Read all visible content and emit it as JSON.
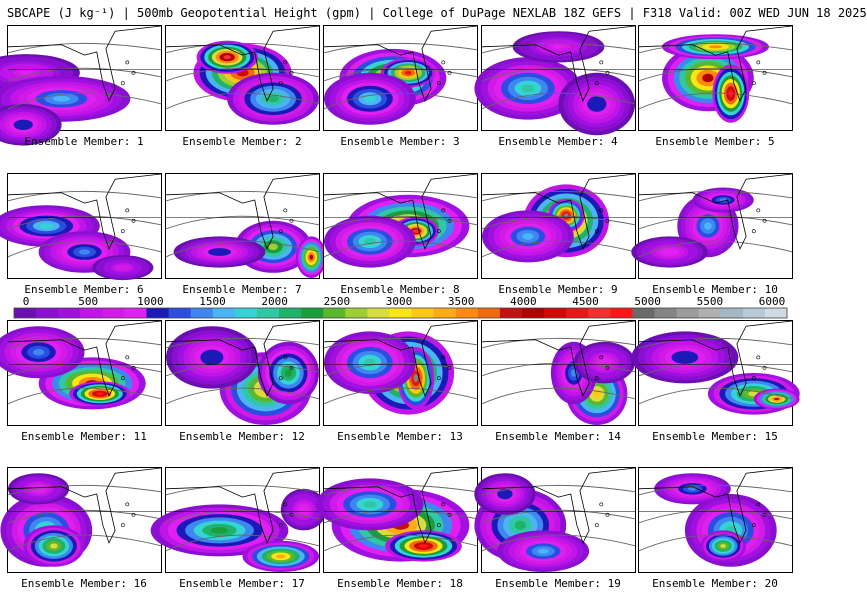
{
  "title": "SBCAPE (J kg⁻¹) | 500mb Geopotential Height (gpm) | College of DuPage NEXLAB 18Z GEFS | F318 Valid: 00Z WED JUN 18 2025",
  "colorbar": {
    "ticks": [
      "0",
      "500",
      "1000",
      "1500",
      "2000",
      "2500",
      "3000",
      "3500",
      "4000",
      "4500",
      "5000",
      "5500",
      "6000"
    ],
    "colors": [
      "#6b0fb3",
      "#8a0fd1",
      "#a010e0",
      "#c014e8",
      "#d21ae6",
      "#e020f0",
      "#1b1ab8",
      "#2b4de0",
      "#3e86f0",
      "#4ab4f5",
      "#35d3d5",
      "#30c7a4",
      "#1fb36a",
      "#1a9e3c",
      "#5ab82e",
      "#9bcf34",
      "#d9dc3a",
      "#fbe615",
      "#ffc816",
      "#ffab14",
      "#ff8a12",
      "#f06a10",
      "#c41010",
      "#b00000",
      "#d00808",
      "#e51717",
      "#f53030",
      "#ff1515",
      "#6a6a6a",
      "#858585",
      "#9c9c9c",
      "#b0b0b0",
      "#a3b8c7",
      "#b8cad7",
      "#cfdbe6"
    ]
  },
  "members": [
    {
      "label": "Ensemble Member: 1",
      "cape": [
        [
          0.12,
          0.45,
          0.9,
          0.35,
          0.18
        ],
        [
          0.35,
          0.7,
          1.6,
          0.45,
          0.22
        ],
        [
          0.1,
          0.95,
          1.2,
          0.25,
          0.2
        ]
      ]
    },
    {
      "label": "Ensemble Member: 2",
      "cape": [
        [
          0.5,
          0.45,
          4.2,
          0.32,
          0.28
        ],
        [
          0.4,
          0.3,
          4.6,
          0.2,
          0.16
        ],
        [
          0.7,
          0.7,
          2.2,
          0.3,
          0.25
        ]
      ]
    },
    {
      "label": "Ensemble Member: 3",
      "cape": [
        [
          0.45,
          0.5,
          3.6,
          0.35,
          0.28
        ],
        [
          0.55,
          0.45,
          4.3,
          0.18,
          0.14
        ],
        [
          0.3,
          0.7,
          1.8,
          0.3,
          0.25
        ]
      ]
    },
    {
      "label": "Ensemble Member: 4",
      "cape": [
        [
          0.3,
          0.6,
          2.0,
          0.35,
          0.3
        ],
        [
          0.75,
          0.75,
          1.2,
          0.25,
          0.3
        ],
        [
          0.5,
          0.2,
          0.9,
          0.3,
          0.15
        ]
      ]
    },
    {
      "label": "Ensemble Member: 5",
      "cape": [
        [
          0.45,
          0.5,
          4.0,
          0.3,
          0.32
        ],
        [
          0.6,
          0.65,
          4.8,
          0.12,
          0.28
        ],
        [
          0.5,
          0.2,
          3.5,
          0.35,
          0.12
        ]
      ]
    },
    {
      "label": "Ensemble Member: 6",
      "cape": [
        [
          0.25,
          0.5,
          1.8,
          0.35,
          0.2
        ],
        [
          0.5,
          0.75,
          1.4,
          0.3,
          0.2
        ],
        [
          0.75,
          0.9,
          0.8,
          0.2,
          0.12
        ]
      ]
    },
    {
      "label": "Ensemble Member: 7",
      "cape": [
        [
          0.7,
          0.7,
          2.6,
          0.25,
          0.25
        ],
        [
          0.95,
          0.8,
          4.0,
          0.1,
          0.2
        ],
        [
          0.35,
          0.75,
          1.2,
          0.3,
          0.15
        ]
      ]
    },
    {
      "label": "Ensemble Member: 8",
      "cape": [
        [
          0.55,
          0.5,
          3.8,
          0.4,
          0.3
        ],
        [
          0.6,
          0.55,
          4.5,
          0.15,
          0.14
        ],
        [
          0.3,
          0.65,
          2.0,
          0.3,
          0.25
        ]
      ]
    },
    {
      "label": "Ensemble Member: 9",
      "cape": [
        [
          0.55,
          0.45,
          4.4,
          0.28,
          0.35
        ],
        [
          0.55,
          0.4,
          5.0,
          0.12,
          0.16
        ],
        [
          0.3,
          0.6,
          1.6,
          0.3,
          0.25
        ]
      ]
    },
    {
      "label": "Ensemble Member: 10",
      "cape": [
        [
          0.45,
          0.5,
          1.6,
          0.2,
          0.3
        ],
        [
          0.55,
          0.25,
          1.5,
          0.2,
          0.12
        ],
        [
          0.2,
          0.75,
          1.0,
          0.25,
          0.15
        ]
      ]
    },
    {
      "label": "Ensemble Member: 11",
      "cape": [
        [
          0.55,
          0.6,
          4.0,
          0.35,
          0.25
        ],
        [
          0.6,
          0.7,
          4.8,
          0.2,
          0.12
        ],
        [
          0.2,
          0.3,
          1.5,
          0.3,
          0.25
        ]
      ]
    },
    {
      "label": "Ensemble Member: 12",
      "cape": [
        [
          0.65,
          0.65,
          3.2,
          0.3,
          0.35
        ],
        [
          0.3,
          0.35,
          1.2,
          0.3,
          0.3
        ],
        [
          0.8,
          0.5,
          2.4,
          0.2,
          0.3
        ]
      ]
    },
    {
      "label": "Ensemble Member: 13",
      "cape": [
        [
          0.55,
          0.5,
          4.2,
          0.3,
          0.4
        ],
        [
          0.6,
          0.55,
          5.0,
          0.12,
          0.3
        ],
        [
          0.3,
          0.4,
          2.0,
          0.3,
          0.3
        ]
      ]
    },
    {
      "label": "Ensemble Member: 14",
      "cape": [
        [
          0.75,
          0.7,
          3.2,
          0.2,
          0.3
        ],
        [
          0.6,
          0.5,
          1.4,
          0.15,
          0.3
        ],
        [
          0.8,
          0.4,
          1.0,
          0.2,
          0.2
        ]
      ]
    },
    {
      "label": "Ensemble Member: 15",
      "cape": [
        [
          0.75,
          0.7,
          2.8,
          0.3,
          0.2
        ],
        [
          0.9,
          0.75,
          3.8,
          0.15,
          0.1
        ],
        [
          0.3,
          0.35,
          1.2,
          0.35,
          0.25
        ]
      ]
    },
    {
      "label": "Ensemble Member: 16",
      "cape": [
        [
          0.25,
          0.6,
          2.0,
          0.3,
          0.35
        ],
        [
          0.3,
          0.75,
          2.8,
          0.2,
          0.2
        ],
        [
          0.2,
          0.2,
          1.0,
          0.2,
          0.15
        ]
      ]
    },
    {
      "label": "Ensemble Member: 17",
      "cape": [
        [
          0.35,
          0.6,
          2.4,
          0.45,
          0.25
        ],
        [
          0.75,
          0.85,
          3.4,
          0.25,
          0.15
        ],
        [
          0.9,
          0.4,
          1.0,
          0.15,
          0.2
        ]
      ]
    },
    {
      "label": "Ensemble Member: 18",
      "cape": [
        [
          0.5,
          0.55,
          3.8,
          0.45,
          0.35
        ],
        [
          0.65,
          0.75,
          4.8,
          0.25,
          0.15
        ],
        [
          0.3,
          0.35,
          2.0,
          0.35,
          0.25
        ]
      ]
    },
    {
      "label": "Ensemble Member: 19",
      "cape": [
        [
          0.25,
          0.55,
          2.2,
          0.3,
          0.35
        ],
        [
          0.4,
          0.8,
          1.6,
          0.3,
          0.2
        ],
        [
          0.15,
          0.25,
          1.2,
          0.2,
          0.2
        ]
      ]
    },
    {
      "label": "Ensemble Member: 20",
      "cape": [
        [
          0.6,
          0.6,
          2.0,
          0.3,
          0.35
        ],
        [
          0.55,
          0.75,
          2.8,
          0.15,
          0.15
        ],
        [
          0.35,
          0.2,
          1.4,
          0.25,
          0.15
        ]
      ]
    }
  ]
}
